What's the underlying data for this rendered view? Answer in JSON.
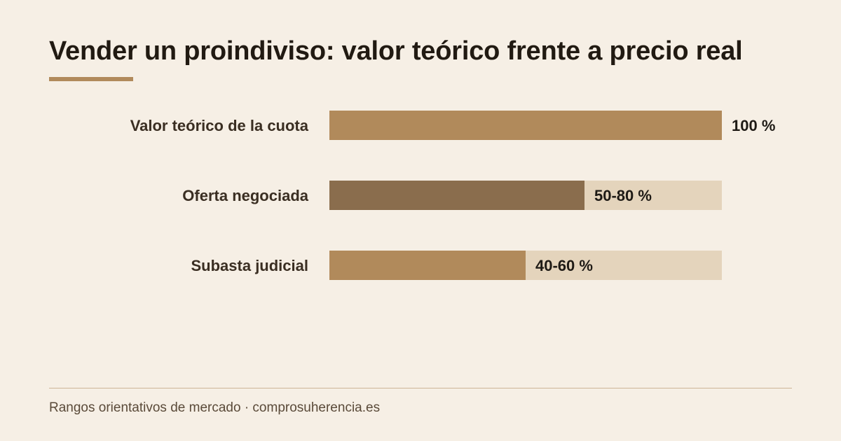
{
  "title": "Vender un proindiviso: valor teórico frente a precio real",
  "footer": "Rangos orientativos de mercado · comprosuherencia.es",
  "colors": {
    "background": "#f6efe5",
    "accent": "#b18a5b",
    "bar_primary": "#b18a5b",
    "bar_dark": "#8a6d4d",
    "bar_track": "#e4d4bc",
    "label_text": "#3a2e22",
    "value_text": "#1e1a15"
  },
  "chart_data": {
    "type": "bar",
    "orientation": "horizontal",
    "unit": "%",
    "xlim": [
      0,
      100
    ],
    "grid": false,
    "legend": "none",
    "categories": [
      "Valor teórico de la cuota",
      "Oferta negociada",
      "Subasta judicial"
    ],
    "values": [
      100,
      65,
      50
    ],
    "value_labels": [
      "100 %",
      "50-80 %",
      "40-60 %"
    ],
    "ranges": [
      [
        100,
        100
      ],
      [
        50,
        80
      ],
      [
        40,
        60
      ]
    ],
    "bar_colors": [
      "#b18a5b",
      "#8a6d4d",
      "#b18a5b"
    ]
  }
}
